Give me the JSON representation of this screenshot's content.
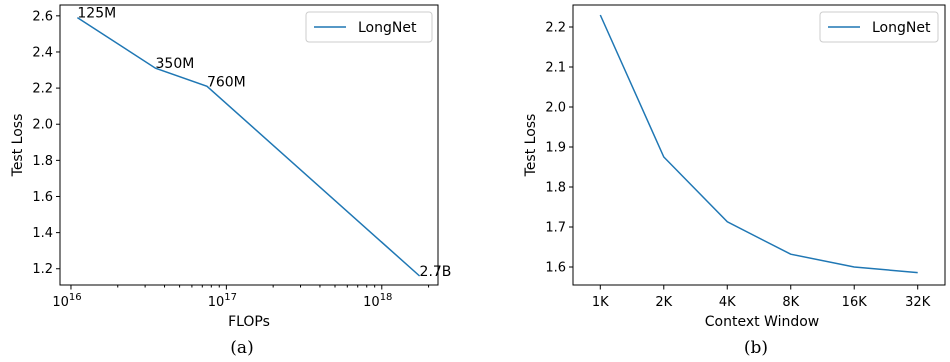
{
  "chart_data": [
    {
      "type": "line",
      "caption": "(a)",
      "xlabel": "FLOPs",
      "ylabel": "Test Loss",
      "xscale": "log",
      "xlim": [
        8500000000000000.0,
        2.3e+18
      ],
      "ylim": [
        1.11,
        2.66
      ],
      "xticks": [
        {
          "value": 1e+16,
          "base": "10",
          "exp": "16"
        },
        {
          "value": 1e+17,
          "base": "10",
          "exp": "17"
        },
        {
          "value": 1e+18,
          "base": "10",
          "exp": "18"
        }
      ],
      "minor_xticks": [
        2e+16,
        3e+16,
        4e+16,
        5e+16,
        6e+16,
        7e+16,
        8e+16,
        9e+16,
        2e+17,
        3e+17,
        4e+17,
        5e+17,
        6e+17,
        7e+17,
        8e+17,
        9e+17,
        2e+18
      ],
      "yticks": [
        1.2,
        1.4,
        1.6,
        1.8,
        2.0,
        2.2,
        2.4,
        2.6
      ],
      "ytick_labels": [
        "1.2",
        "1.4",
        "1.6",
        "1.8",
        "2.0",
        "2.2",
        "2.4",
        "2.6"
      ],
      "legend_position": "top-right",
      "series": [
        {
          "name": "LongNet",
          "color": "#1f77b4",
          "x": [
            1.1e+16,
            3.5e+16,
            7.5e+16,
            1.75e+18
          ],
          "y": [
            2.59,
            2.31,
            2.21,
            1.16
          ]
        }
      ],
      "annotations": [
        {
          "text": "125M",
          "x": 1.1e+16,
          "y": 2.59
        },
        {
          "text": "350M",
          "x": 3.5e+16,
          "y": 2.31
        },
        {
          "text": "760M",
          "x": 7.5e+16,
          "y": 2.21
        },
        {
          "text": "2.7B",
          "x": 1.75e+18,
          "y": 1.16
        }
      ]
    },
    {
      "type": "line",
      "caption": "(b)",
      "xlabel": "Context Window",
      "ylabel": "Test Loss",
      "categories": [
        "1K",
        "2K",
        "4K",
        "8K",
        "16K",
        "32K"
      ],
      "ylim": [
        1.555,
        2.255
      ],
      "yticks": [
        1.6,
        1.7,
        1.8,
        1.9,
        2.0,
        2.1,
        2.2
      ],
      "ytick_labels": [
        "1.6",
        "1.7",
        "1.8",
        "1.9",
        "2.0",
        "2.1",
        "2.2"
      ],
      "legend_position": "top-right",
      "series": [
        {
          "name": "LongNet",
          "color": "#1f77b4",
          "values": [
            2.23,
            1.875,
            1.713,
            1.632,
            1.6,
            1.586
          ]
        }
      ]
    }
  ]
}
